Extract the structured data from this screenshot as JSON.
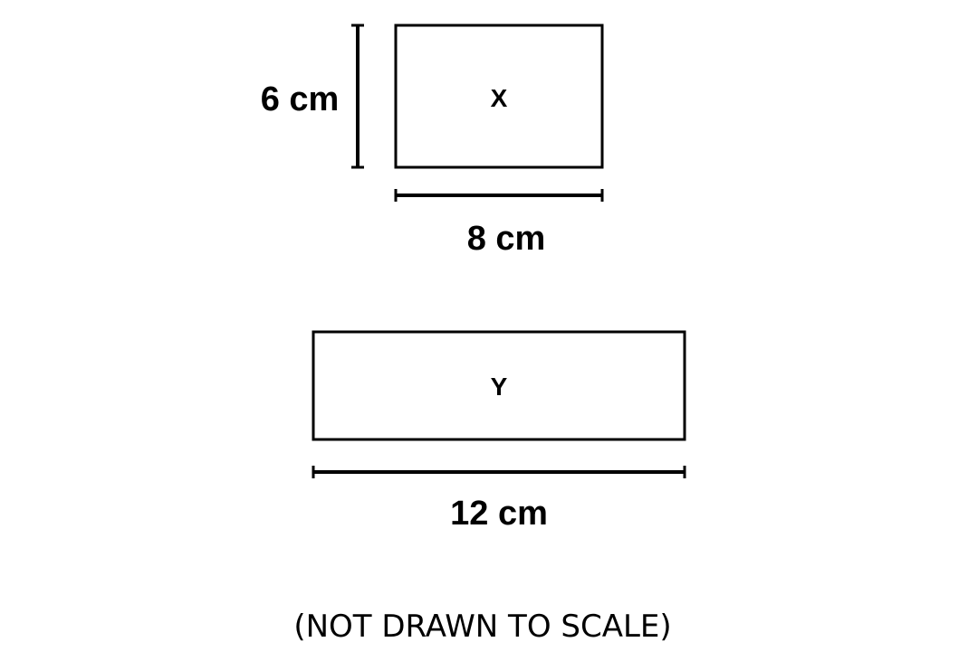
{
  "shapes": {
    "x": {
      "label": "X",
      "height_label": "6 cm",
      "width_label": "8 cm"
    },
    "y": {
      "label": "Y",
      "width_label": "12 cm"
    }
  },
  "note": "(NOT DRAWN TO SCALE)"
}
